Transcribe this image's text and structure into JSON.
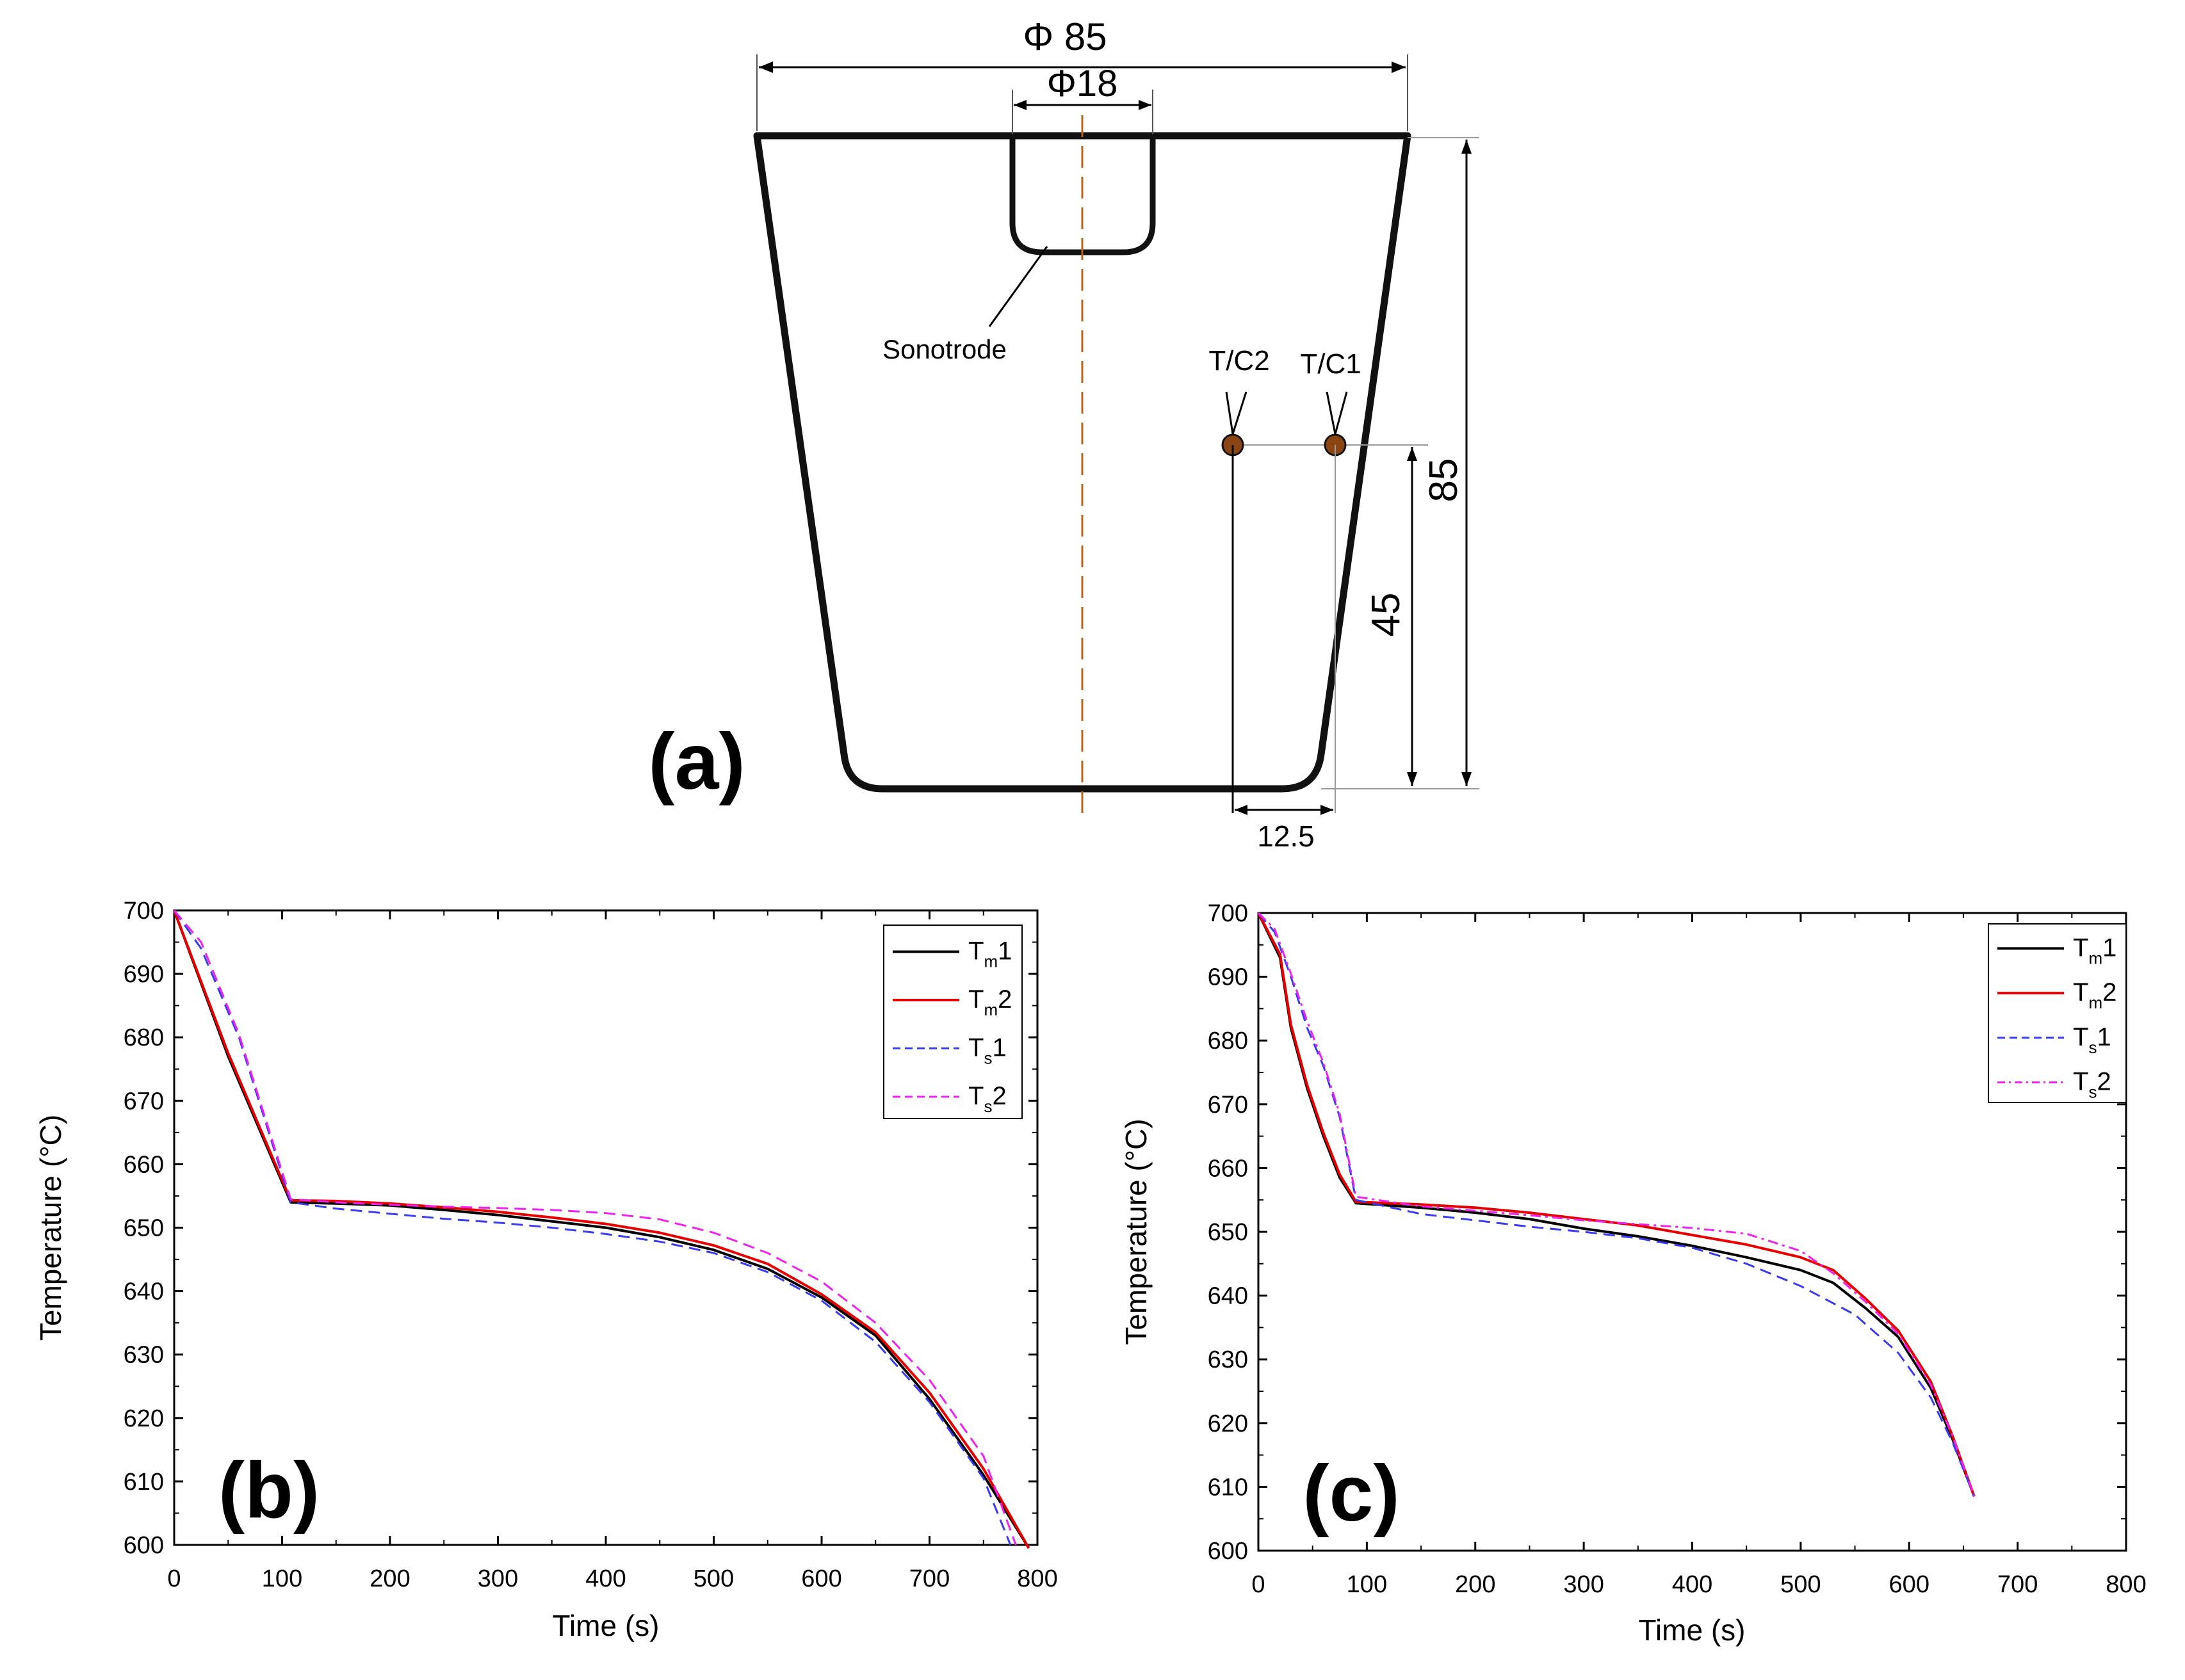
{
  "colors": {
    "tm1": "#000000",
    "tm2": "#e60000",
    "ts1": "#3a3aee",
    "ts2": "#ee22ee",
    "centerline": "#b5651d",
    "thermocouple": "#8b4513"
  },
  "schematic": {
    "panel_label": "(a)",
    "dim_top_diameter": "Φ 85",
    "dim_sonotrode_diameter": "Φ18",
    "dim_height": "85",
    "dim_tc_height": "45",
    "dim_tc_spacing": "12.5",
    "label_sonotrode": "Sonotrode",
    "label_tc1": "T/C1",
    "label_tc2": "T/C2"
  },
  "chart_data": [
    {
      "panel_label": "(b)",
      "type": "line",
      "xlabel": "Time (s)",
      "ylabel": "Temperature (°C)",
      "xlim": [
        0,
        800
      ],
      "ylim": [
        600,
        700
      ],
      "xticks": [
        "0",
        "100",
        "200",
        "300",
        "400",
        "500",
        "600",
        "700",
        "800"
      ],
      "yticks": [
        "600",
        "610",
        "620",
        "630",
        "640",
        "650",
        "660",
        "670",
        "680",
        "690",
        "700"
      ],
      "legend": [
        {
          "base": "T",
          "sub": "m",
          "suffix": "1",
          "key": "tm1",
          "dash": "solid"
        },
        {
          "base": "T",
          "sub": "m",
          "suffix": "2",
          "key": "tm2",
          "dash": "solid"
        },
        {
          "base": "T",
          "sub": "s",
          "suffix": "1",
          "key": "ts1",
          "dash": "dash"
        },
        {
          "base": "T",
          "sub": "s",
          "suffix": "2",
          "key": "ts2",
          "dash": "dash"
        }
      ],
      "series": [
        {
          "name": "Tm1",
          "key": "tm1",
          "dash": "solid",
          "points": [
            [
              0,
              700
            ],
            [
              50,
              677
            ],
            [
              108,
              654
            ],
            [
              150,
              653.8
            ],
            [
              200,
              653.5
            ],
            [
              250,
              652.8
            ],
            [
              300,
              652
            ],
            [
              350,
              651
            ],
            [
              400,
              650
            ],
            [
              450,
              648.5
            ],
            [
              500,
              646.5
            ],
            [
              550,
              643.5
            ],
            [
              600,
              639
            ],
            [
              650,
              633
            ],
            [
              700,
              623
            ],
            [
              750,
              611
            ],
            [
              792,
              599.5
            ]
          ]
        },
        {
          "name": "Tm2",
          "key": "tm2",
          "dash": "solid",
          "points": [
            [
              0,
              700
            ],
            [
              50,
              677.5
            ],
            [
              108,
              654.3
            ],
            [
              150,
              654.2
            ],
            [
              200,
              653.8
            ],
            [
              250,
              653.2
            ],
            [
              300,
              652.5
            ],
            [
              350,
              651.6
            ],
            [
              400,
              650.6
            ],
            [
              450,
              649.2
            ],
            [
              500,
              647.2
            ],
            [
              550,
              644.3
            ],
            [
              600,
              639.5
            ],
            [
              650,
              633.5
            ],
            [
              700,
              624
            ],
            [
              750,
              612
            ],
            [
              792,
              599.5
            ]
          ]
        },
        {
          "name": "Ts1",
          "key": "ts1",
          "dash": "dash",
          "points": [
            [
              0,
              700
            ],
            [
              25,
              694
            ],
            [
              60,
              680
            ],
            [
              108,
              654
            ],
            [
              150,
              653
            ],
            [
              200,
              652.2
            ],
            [
              250,
              651.4
            ],
            [
              300,
              650.8
            ],
            [
              350,
              650
            ],
            [
              400,
              649
            ],
            [
              450,
              647.8
            ],
            [
              500,
              646
            ],
            [
              550,
              643
            ],
            [
              600,
              638.5
            ],
            [
              650,
              632
            ],
            [
              700,
              622.5
            ],
            [
              750,
              610.5
            ],
            [
              775,
              600
            ]
          ]
        },
        {
          "name": "Ts2",
          "key": "ts2",
          "dash": "dash",
          "points": [
            [
              0,
              700
            ],
            [
              25,
              695
            ],
            [
              60,
              680.5
            ],
            [
              108,
              654.5
            ],
            [
              150,
              654
            ],
            [
              200,
              653.6
            ],
            [
              250,
              653.3
            ],
            [
              300,
              653.1
            ],
            [
              350,
              652.8
            ],
            [
              400,
              652.3
            ],
            [
              450,
              651.3
            ],
            [
              500,
              649.2
            ],
            [
              550,
              646
            ],
            [
              600,
              641.5
            ],
            [
              650,
              635
            ],
            [
              700,
              626
            ],
            [
              750,
              614
            ],
            [
              780,
              600
            ]
          ]
        }
      ]
    },
    {
      "panel_label": "(c)",
      "type": "line",
      "xlabel": "Time (s)",
      "ylabel": "Temperature (°C)",
      "xlim": [
        0,
        800
      ],
      "ylim": [
        600,
        700
      ],
      "xticks": [
        "0",
        "100",
        "200",
        "300",
        "400",
        "500",
        "600",
        "700",
        "800"
      ],
      "yticks": [
        "600",
        "610",
        "620",
        "630",
        "640",
        "650",
        "660",
        "670",
        "680",
        "690",
        "700"
      ],
      "legend": [
        {
          "base": "T",
          "sub": "m",
          "suffix": "1",
          "key": "tm1",
          "dash": "solid"
        },
        {
          "base": "T",
          "sub": "m",
          "suffix": "2",
          "key": "tm2",
          "dash": "solid"
        },
        {
          "base": "T",
          "sub": "s",
          "suffix": "1",
          "key": "ts1",
          "dash": "dash"
        },
        {
          "base": "T",
          "sub": "s",
          "suffix": "2",
          "key": "ts2",
          "dash": "dashdot"
        }
      ],
      "series": [
        {
          "name": "Tm1",
          "key": "tm1",
          "dash": "solid",
          "points": [
            [
              0,
              700
            ],
            [
              20,
              693
            ],
            [
              30,
              682
            ],
            [
              45,
              672.5
            ],
            [
              60,
              665
            ],
            [
              75,
              658.5
            ],
            [
              90,
              654.5
            ],
            [
              150,
              653.8
            ],
            [
              200,
              653
            ],
            [
              250,
              652
            ],
            [
              300,
              650.5
            ],
            [
              350,
              649.3
            ],
            [
              400,
              647.8
            ],
            [
              450,
              646
            ],
            [
              500,
              644
            ],
            [
              530,
              642
            ],
            [
              560,
              638
            ],
            [
              590,
              633.5
            ],
            [
              620,
              625.5
            ],
            [
              640,
              617.5
            ],
            [
              660,
              608.5
            ]
          ]
        },
        {
          "name": "Tm2",
          "key": "tm2",
          "dash": "solid",
          "points": [
            [
              0,
              700
            ],
            [
              20,
              693.5
            ],
            [
              30,
              682.5
            ],
            [
              45,
              673
            ],
            [
              60,
              665.5
            ],
            [
              75,
              659
            ],
            [
              90,
              654.7
            ],
            [
              150,
              654.3
            ],
            [
              200,
              653.8
            ],
            [
              250,
              653
            ],
            [
              300,
              652
            ],
            [
              350,
              651
            ],
            [
              400,
              649.5
            ],
            [
              450,
              648
            ],
            [
              500,
              646
            ],
            [
              530,
              644
            ],
            [
              560,
              639.5
            ],
            [
              590,
              634.5
            ],
            [
              620,
              626.5
            ],
            [
              640,
              618
            ],
            [
              660,
              608.5
            ]
          ]
        },
        {
          "name": "Ts1",
          "key": "ts1",
          "dash": "dash",
          "points": [
            [
              0,
              700
            ],
            [
              15,
              697
            ],
            [
              30,
              690
            ],
            [
              45,
              682
            ],
            [
              60,
              676
            ],
            [
              75,
              668
            ],
            [
              90,
              655
            ],
            [
              150,
              652.8
            ],
            [
              200,
              651.8
            ],
            [
              250,
              650.8
            ],
            [
              300,
              650
            ],
            [
              350,
              649
            ],
            [
              400,
              647.5
            ],
            [
              450,
              645
            ],
            [
              500,
              641.5
            ],
            [
              550,
              637
            ],
            [
              590,
              631
            ],
            [
              620,
              624
            ],
            [
              640,
              617
            ],
            [
              660,
              608.5
            ]
          ]
        },
        {
          "name": "Ts2",
          "key": "ts2",
          "dash": "dashdot",
          "points": [
            [
              0,
              700
            ],
            [
              15,
              697.5
            ],
            [
              30,
              690.5
            ],
            [
              45,
              683
            ],
            [
              60,
              676.5
            ],
            [
              75,
              668.5
            ],
            [
              90,
              655.5
            ],
            [
              150,
              654
            ],
            [
              200,
              653.3
            ],
            [
              250,
              652.6
            ],
            [
              300,
              651.8
            ],
            [
              350,
              651.2
            ],
            [
              400,
              650.6
            ],
            [
              450,
              649.7
            ],
            [
              500,
              647
            ],
            [
              530,
              643.5
            ],
            [
              560,
              639
            ],
            [
              590,
              634
            ],
            [
              620,
              626
            ],
            [
              640,
              618
            ],
            [
              660,
              608.5
            ]
          ]
        }
      ]
    }
  ]
}
